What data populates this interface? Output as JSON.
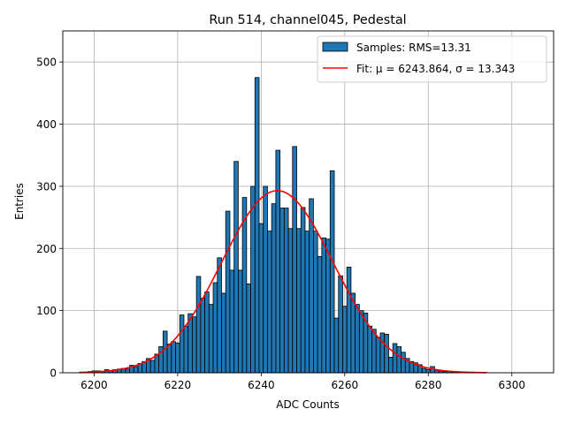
{
  "chart_data": {
    "type": "bar",
    "title": "Run 514, channel045, Pedestal",
    "xlabel": "ADC Counts",
    "ylabel": "Entries",
    "xlim": [
      6192.5,
      6310.0
    ],
    "ylim": [
      0,
      550
    ],
    "xticks": [
      6200,
      6220,
      6240,
      6260,
      6280,
      6300
    ],
    "yticks": [
      0,
      100,
      200,
      300,
      400,
      500
    ],
    "grid": true,
    "legend_position": "top-right",
    "bin_width": 1,
    "bar_color": "#1f77b4",
    "bar_edge_color": "#000000",
    "fit_color": "#ff0000",
    "histogram": {
      "name": "Samples: RMS=13.31",
      "bins": [
        6197,
        6198,
        6199,
        6200,
        6201,
        6202,
        6203,
        6204,
        6205,
        6206,
        6207,
        6208,
        6209,
        6210,
        6211,
        6212,
        6213,
        6214,
        6215,
        6216,
        6217,
        6218,
        6219,
        6220,
        6221,
        6222,
        6223,
        6224,
        6225,
        6226,
        6227,
        6228,
        6229,
        6230,
        6231,
        6232,
        6233,
        6234,
        6235,
        6236,
        6237,
        6238,
        6239,
        6240,
        6241,
        6242,
        6243,
        6244,
        6245,
        6246,
        6247,
        6248,
        6249,
        6250,
        6251,
        6252,
        6253,
        6254,
        6255,
        6256,
        6257,
        6258,
        6259,
        6260,
        6261,
        6262,
        6263,
        6264,
        6265,
        6266,
        6267,
        6268,
        6269,
        6270,
        6271,
        6272,
        6273,
        6274,
        6275,
        6276,
        6277,
        6278,
        6279,
        6280,
        6281,
        6282,
        6283,
        6284,
        6285,
        6286,
        6287,
        6288,
        6289,
        6290
      ],
      "values": [
        1,
        1,
        2,
        3,
        3,
        2,
        5,
        3,
        5,
        6,
        7,
        6,
        12,
        10,
        15,
        18,
        23,
        20,
        30,
        42,
        67,
        46,
        50,
        48,
        93,
        75,
        95,
        90,
        155,
        120,
        130,
        110,
        145,
        185,
        128,
        260,
        165,
        340,
        165,
        282,
        143,
        300,
        475,
        240,
        300,
        228,
        272,
        358,
        265,
        265,
        232,
        364,
        232,
        266,
        228,
        280,
        228,
        187,
        217,
        215,
        325,
        88,
        156,
        107,
        170,
        128,
        110,
        100,
        96,
        75,
        70,
        57,
        64,
        62,
        25,
        47,
        42,
        33,
        23,
        18,
        16,
        13,
        7,
        5,
        10,
        4,
        3,
        2,
        2,
        1,
        1,
        0,
        0,
        0
      ]
    },
    "fit": {
      "name": "Fit: μ = 6243.864, σ = 13.343",
      "mu": 6243.864,
      "sigma": 13.343,
      "amplitude": 293,
      "x_range": [
        6196.5,
        6294.0
      ]
    }
  }
}
